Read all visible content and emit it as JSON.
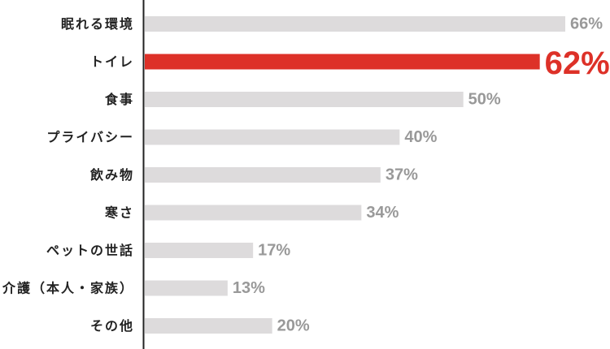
{
  "chart_data": {
    "type": "bar",
    "orientation": "horizontal",
    "categories": [
      "眠れる環境",
      "トイレ",
      "食事",
      "プライバシー",
      "飲み物",
      "寒さ",
      "ペットの世話",
      "介護（本人・家族）",
      "その他"
    ],
    "values": [
      66,
      62,
      50,
      40,
      37,
      34,
      17,
      13,
      20
    ],
    "value_labels": [
      "66%",
      "62%",
      "50%",
      "40%",
      "37%",
      "34%",
      "17%",
      "13%",
      "20%"
    ],
    "highlight_index": 1,
    "title": "",
    "xlabel": "",
    "ylabel": "",
    "xlim": [
      0,
      66
    ],
    "grid": false,
    "legend": "none",
    "colors": {
      "bar": "#dddbdc",
      "highlight": "#dd3128",
      "label": "#999999",
      "axis": "#222222"
    }
  }
}
